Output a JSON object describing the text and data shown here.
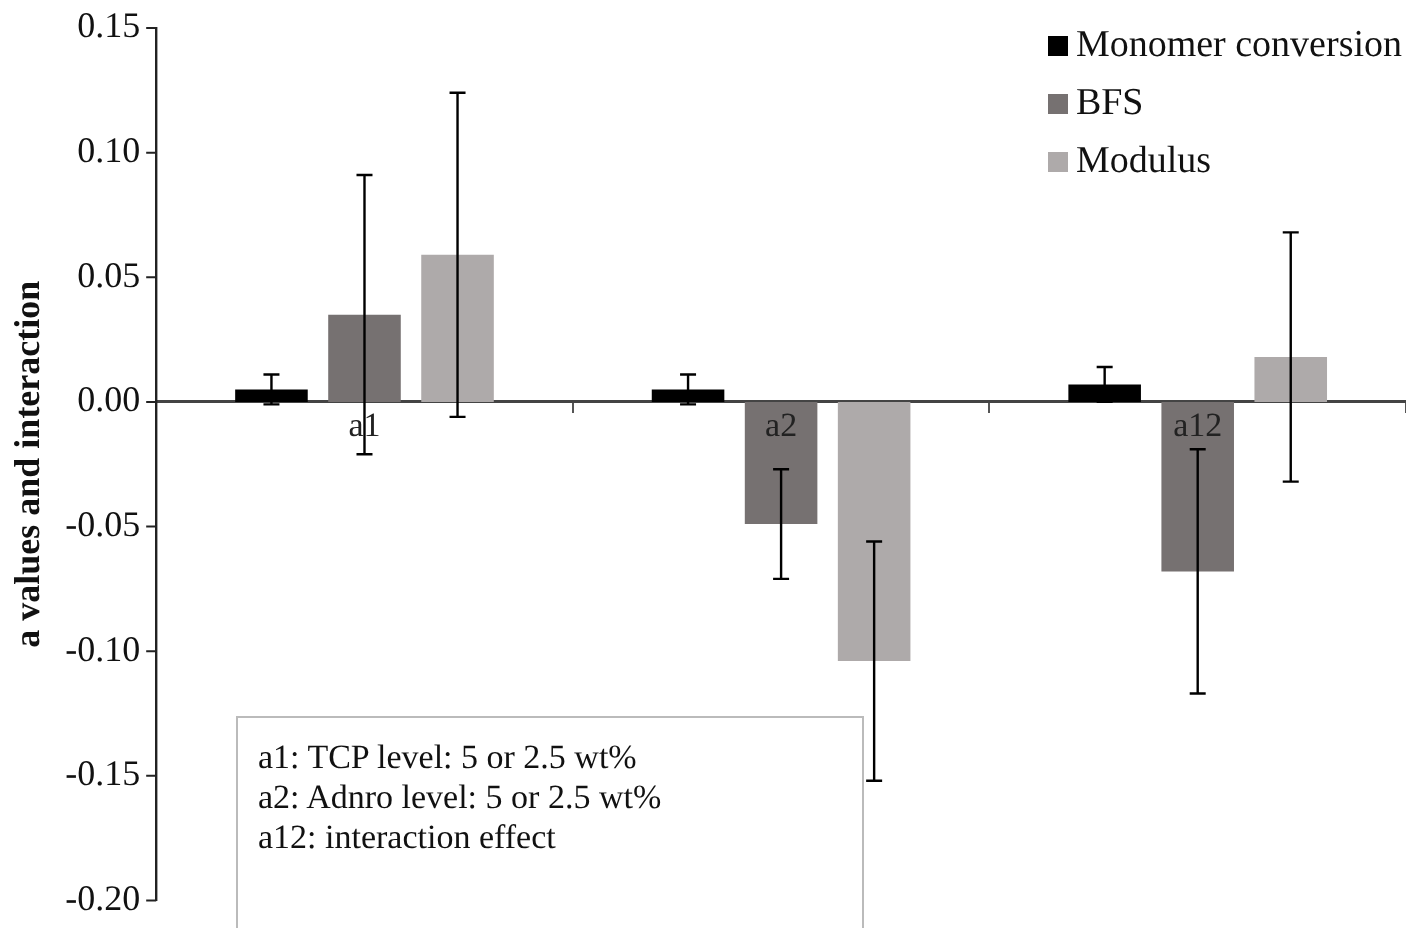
{
  "chart_data": {
    "type": "bar",
    "ylabel": "a values and interaction",
    "categories": [
      "a1",
      "a2",
      "a12"
    ],
    "series": [
      {
        "name": "Monomer conversion",
        "color": "#000000",
        "values": [
          0.005,
          0.005,
          0.007
        ],
        "errors": [
          0.006,
          0.006,
          0.007
        ]
      },
      {
        "name": "BFS",
        "color": "#767171",
        "values": [
          0.035,
          -0.049,
          -0.068
        ],
        "errors": [
          0.056,
          0.022,
          0.049
        ]
      },
      {
        "name": "Modulus",
        "color": "#aeaaaa",
        "values": [
          0.059,
          -0.104,
          0.018
        ],
        "errors": [
          0.065,
          0.048,
          0.05
        ]
      }
    ],
    "ylim": [
      -0.2,
      0.15
    ],
    "yticks": [
      {
        "value": -0.2,
        "label": "-0.20"
      },
      {
        "value": -0.15,
        "label": "-0.15"
      },
      {
        "value": -0.1,
        "label": "-0.10"
      },
      {
        "value": -0.05,
        "label": "-0.05"
      },
      {
        "value": 0,
        "label": "0.00"
      },
      {
        "value": 0.05,
        "label": "0.05"
      },
      {
        "value": 0.1,
        "label": "0.10"
      },
      {
        "value": 0.15,
        "label": "0.15"
      }
    ],
    "grid": false,
    "legend": "top right",
    "annotations": [
      "a1: TCP level: 5 or 2.5 wt%",
      "a2: Adnro level: 5 or 2.5 wt%",
      "a12: interaction effect"
    ]
  }
}
